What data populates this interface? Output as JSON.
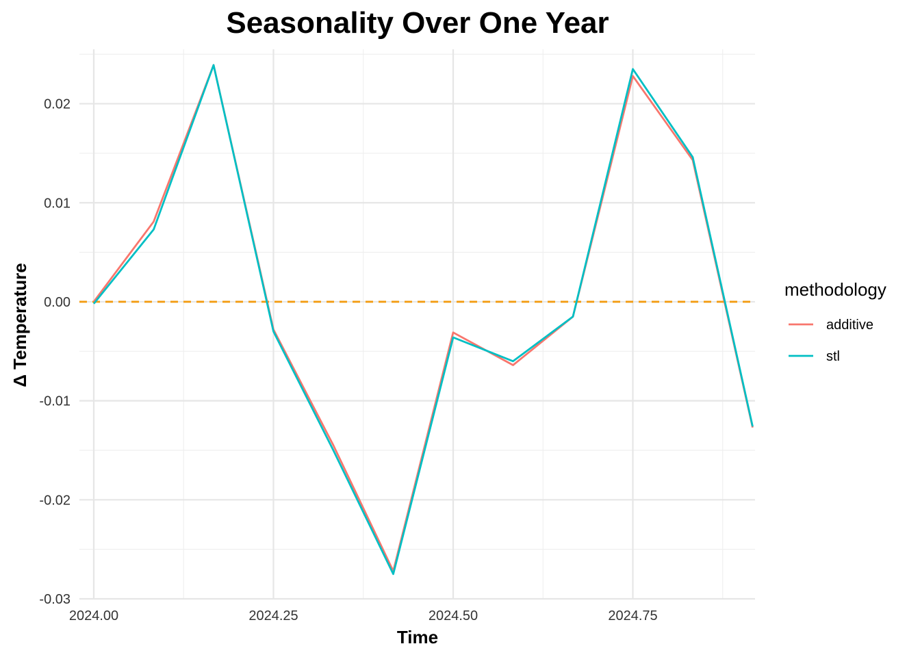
{
  "chart_data": {
    "type": "line",
    "title": "Seasonality Over One Year",
    "xlabel": "Time",
    "ylabel": "Δ Temperature",
    "xlim": [
      2023.98,
      2024.92
    ],
    "ylim": [
      -0.03,
      0.0255
    ],
    "x_ticks": [
      2024.0,
      2024.25,
      2024.5,
      2024.75
    ],
    "x_tick_labels": [
      "2024.00",
      "2024.25",
      "2024.50",
      "2024.75"
    ],
    "y_ticks": [
      -0.03,
      -0.02,
      -0.01,
      0.0,
      0.01,
      0.02
    ],
    "y_tick_labels": [
      "-0.03",
      "-0.02",
      "-0.01",
      "0.00",
      "0.01",
      "0.02"
    ],
    "grid": true,
    "reference_line": {
      "y": 0.0,
      "style": "dashed",
      "color": "#F39C12"
    },
    "legend": {
      "title": "methodology",
      "position": "right"
    },
    "x": [
      2024.0,
      2024.0833,
      2024.1667,
      2024.25,
      2024.3333,
      2024.4167,
      2024.5,
      2024.5833,
      2024.6667,
      2024.75,
      2024.8333,
      2024.9167
    ],
    "series": [
      {
        "name": "additive",
        "color": "#F8766D",
        "values": [
          0.0,
          0.0081,
          0.0239,
          -0.0028,
          -0.0145,
          -0.0272,
          -0.0031,
          -0.0064,
          -0.0015,
          0.0228,
          0.0143,
          -0.0127
        ]
      },
      {
        "name": "stl",
        "color": "#00BFC4",
        "values": [
          -0.0002,
          0.0073,
          0.0239,
          -0.003,
          -0.015,
          -0.0275,
          -0.0036,
          -0.006,
          -0.0015,
          0.0235,
          0.0146,
          -0.0126
        ]
      }
    ]
  }
}
